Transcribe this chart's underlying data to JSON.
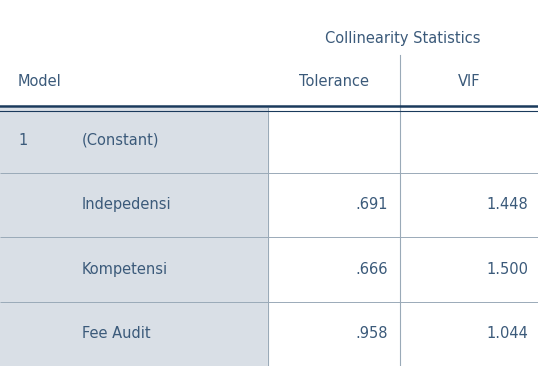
{
  "title": "Collinearity Statistics",
  "rows": [
    [
      "1",
      "(Constant)",
      "",
      ""
    ],
    [
      "",
      "Indepedensi",
      ".691",
      "1.448"
    ],
    [
      "",
      "Kompetensi",
      ".666",
      "1.500"
    ],
    [
      "",
      "Fee Audit",
      ".958",
      "1.044"
    ]
  ],
  "bg_color_left": "#d9dfe6",
  "bg_color_white": "#ffffff",
  "header_text_color": "#3b5a7a",
  "body_text_color": "#3b5a7a",
  "header_line_color": "#1a3a5c",
  "inner_line_color": "#9aaab8",
  "font_size_header": 10.5,
  "font_size_body": 10.5,
  "figsize": [
    5.38,
    3.66
  ],
  "dpi": 100
}
